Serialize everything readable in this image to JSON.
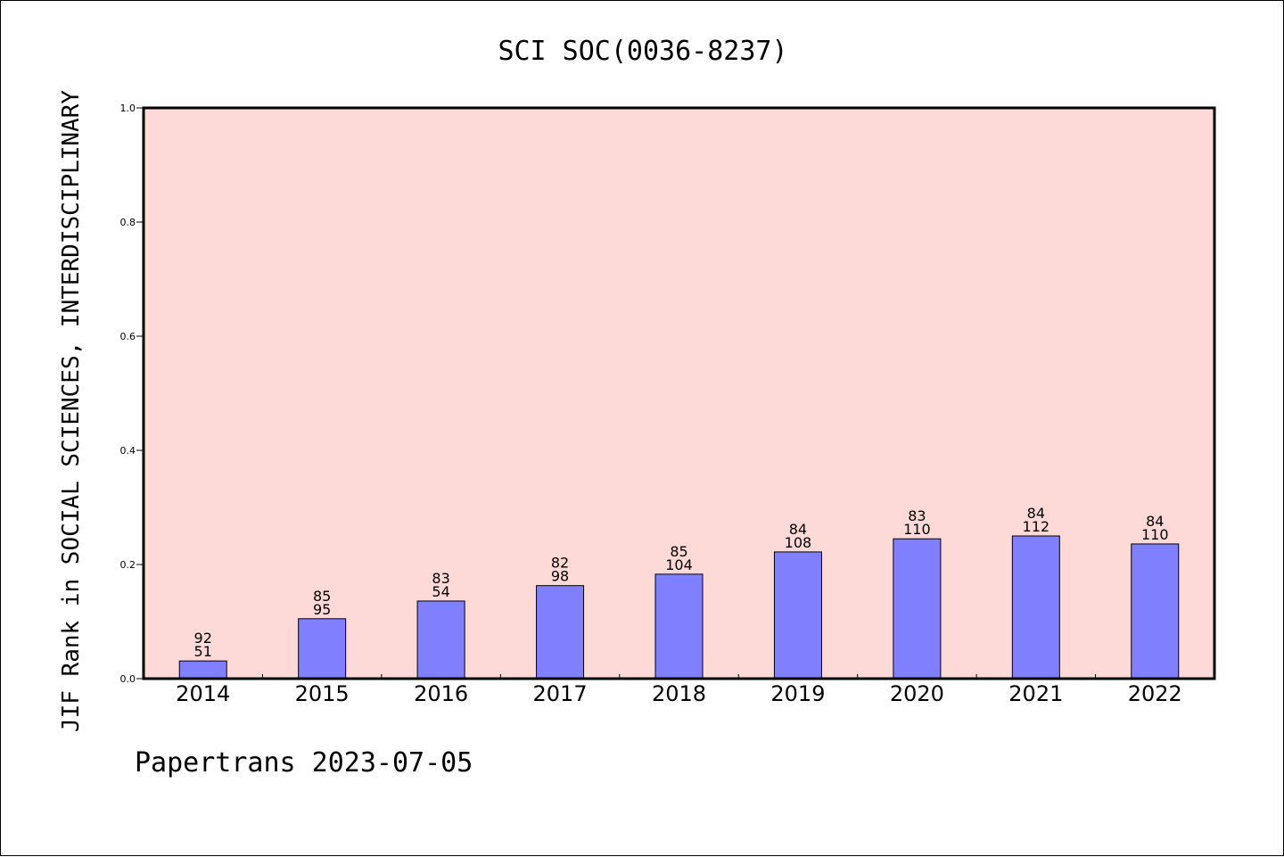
{
  "chart_data": {
    "type": "bar",
    "title": "SCI SOC(0036-8237)",
    "xlabel": "",
    "ylabel": "JIF Rank in SOCIAL SCIENCES, INTERDISCIPLINARY",
    "ylim": [
      0,
      1.0
    ],
    "yticks": [
      "0.0",
      "0.2",
      "0.4",
      "0.6",
      "0.8",
      "1.0"
    ],
    "categories": [
      "2014",
      "2015",
      "2016",
      "2017",
      "2018",
      "2019",
      "2020",
      "2021",
      "2022"
    ],
    "values": [
      0.031,
      0.105,
      0.136,
      0.163,
      0.183,
      0.222,
      0.245,
      0.25,
      0.236
    ],
    "rank_labels": [
      "92",
      "85",
      "83",
      "82",
      "85",
      "84",
      "83",
      "84",
      "84"
    ],
    "total_labels": [
      "51",
      "95",
      "54",
      "98",
      "104",
      "108",
      "110",
      "112",
      "110"
    ],
    "colors": {
      "plot_background": "#fddad7",
      "bar_fill": "#8080ff",
      "bar_stroke": "#000000"
    },
    "grid": false,
    "legend": "none"
  },
  "footer": {
    "text": "Papertrans 2023-07-05"
  }
}
